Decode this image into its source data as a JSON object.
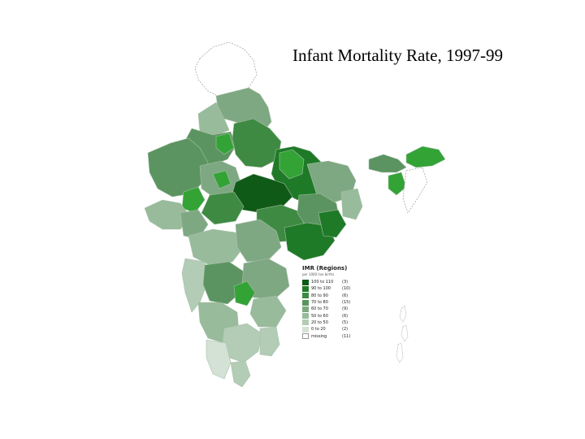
{
  "title": "Infant Mortality Rate, 1997-99",
  "legend": {
    "title": "IMR (Regions)",
    "subtitle": "per 1000 live births",
    "items": [
      {
        "label": "100 to 110",
        "count": "(3)",
        "color": "#0f5a17"
      },
      {
        "label": "90 to 100",
        "count": "(10)",
        "color": "#1f7a27"
      },
      {
        "label": "80 to 90",
        "count": "(6)",
        "color": "#3e8a42"
      },
      {
        "label": "70 to 80",
        "count": "(15)",
        "color": "#5b9460"
      },
      {
        "label": "60 to 70",
        "count": "(9)",
        "color": "#7ea882"
      },
      {
        "label": "50 to 60",
        "count": "(6)",
        "color": "#98bb9b"
      },
      {
        "label": "20 to 50",
        "count": "(5)",
        "color": "#b3ccb5"
      },
      {
        "label": "0 to 20",
        "count": "(2)",
        "color": "#d3e2d4"
      },
      {
        "label": "missing",
        "count": "(11)",
        "color": "#ffffff"
      }
    ]
  },
  "colors": {
    "bright_regions": "#33a336",
    "border": "#9cb79e",
    "missing_outline": "#8c8c8c"
  }
}
